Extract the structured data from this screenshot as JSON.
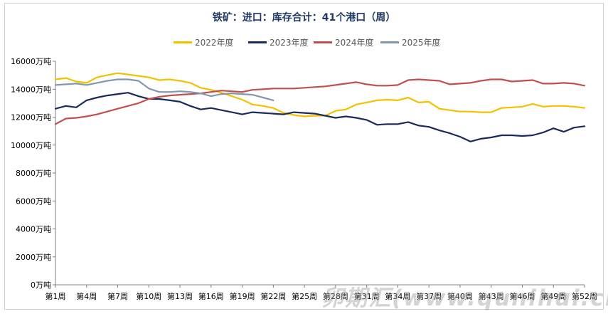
{
  "chart_data": {
    "type": "line",
    "title": "铁矿：进口：库存合计：41个港口（周）",
    "xlabel": "",
    "ylabel": "",
    "ylim": [
      0,
      16000
    ],
    "yticks": [
      "0万吨",
      "2000万吨",
      "4000万吨",
      "6000万吨",
      "8000万吨",
      "10000万吨",
      "12000万吨",
      "14000万吨",
      "16000万吨"
    ],
    "xtick_labels": [
      "第1周",
      "第4周",
      "第7周",
      "第10周",
      "第13周",
      "第16周",
      "第19周",
      "第22周",
      "第25周",
      "第28周",
      "第31周",
      "第34周",
      "第37周",
      "第40周",
      "第43周",
      "第46周",
      "第49周",
      "第52周"
    ],
    "weeks": 52,
    "grid": false,
    "legend_position": "top",
    "series": [
      {
        "name": "2022年度",
        "color": "#f5c000",
        "values": [
          14700,
          14800,
          14550,
          14450,
          14850,
          15000,
          15150,
          15050,
          14950,
          14850,
          14650,
          14700,
          14600,
          14450,
          14100,
          13950,
          13750,
          13500,
          13250,
          12900,
          12800,
          12650,
          12300,
          12150,
          12050,
          12100,
          12100,
          12450,
          12550,
          12900,
          13050,
          13200,
          13250,
          13200,
          13400,
          13050,
          13100,
          12600,
          12500,
          12400,
          12400,
          12350,
          12350,
          12650,
          12700,
          12750,
          12950,
          12750,
          12800,
          12800,
          12750,
          12650
        ]
      },
      {
        "name": "2023年度",
        "color": "#1b2a5e",
        "values": [
          12600,
          12800,
          12700,
          13200,
          13400,
          13550,
          13650,
          13750,
          13500,
          13300,
          13300,
          13200,
          13100,
          12800,
          12550,
          12650,
          12500,
          12350,
          12200,
          12350,
          12300,
          12250,
          12200,
          12350,
          12300,
          12250,
          12100,
          11950,
          12050,
          11950,
          11800,
          11450,
          11500,
          11500,
          11650,
          11400,
          11300,
          11050,
          10850,
          10600,
          10250,
          10450,
          10550,
          10700,
          10700,
          10650,
          10700,
          10900,
          11200,
          10950,
          11250,
          11350
        ]
      },
      {
        "name": "2024年度",
        "color": "#c0504d",
        "values": [
          11500,
          11900,
          11950,
          12050,
          12200,
          12400,
          12600,
          12800,
          13000,
          13300,
          13450,
          13550,
          13600,
          13650,
          13700,
          13800,
          13900,
          13850,
          13800,
          13950,
          14000,
          14050,
          14050,
          14050,
          14100,
          14150,
          14200,
          14300,
          14400,
          14500,
          14350,
          14250,
          14250,
          14300,
          14650,
          14700,
          14650,
          14600,
          14350,
          14400,
          14450,
          14600,
          14700,
          14700,
          14550,
          14600,
          14650,
          14400,
          14400,
          14450,
          14400,
          14250
        ]
      },
      {
        "name": "2025年度",
        "color": "#8497b0",
        "values": [
          14300,
          14350,
          14400,
          14300,
          14450,
          14600,
          14700,
          14700,
          14600,
          14050,
          13800,
          13800,
          13850,
          13800,
          13700,
          13500,
          13650,
          13700,
          13650,
          13600,
          13400,
          13200
        ]
      }
    ]
  },
  "watermark": "卵期汇(www.qunihui.cn)"
}
